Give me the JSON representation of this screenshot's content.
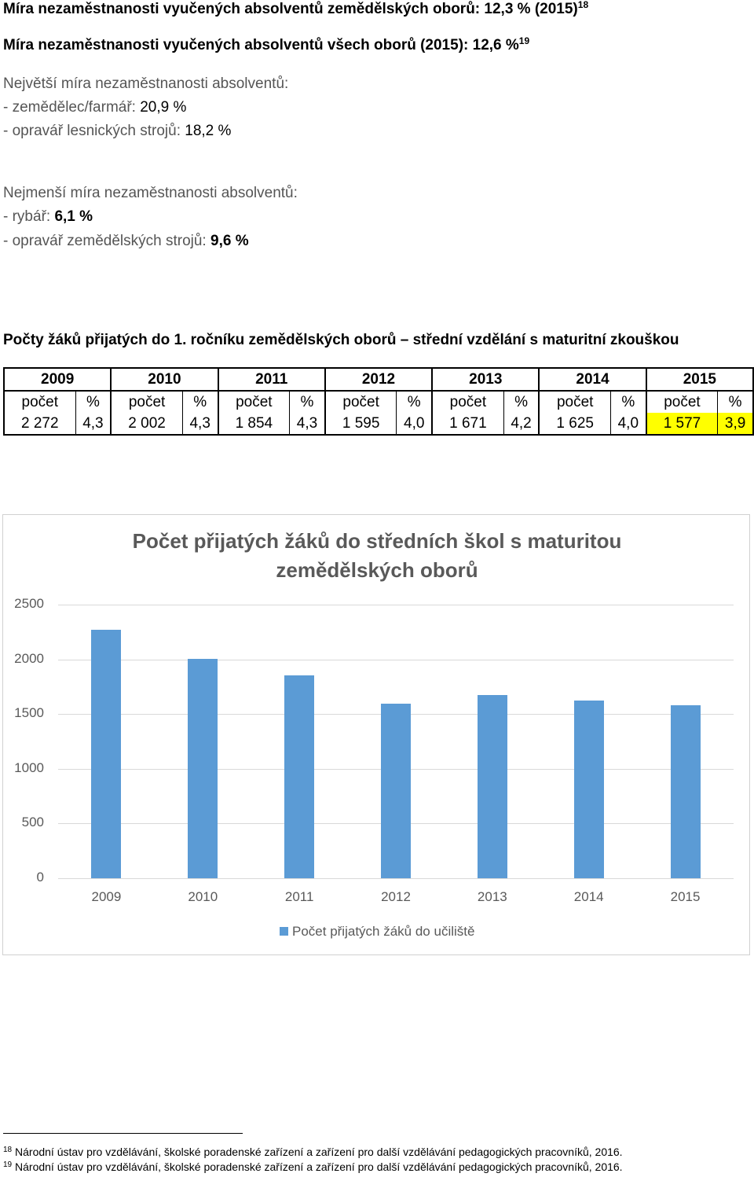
{
  "top": {
    "line1": {
      "text": "Míra nezaměstnanosti vyučených absolventů zemědělských oborů: 12,3 % (2015)",
      "sup": "18"
    },
    "line2": {
      "text": "Míra nezaměstnanosti vyučených absolventů všech oborů (2015): 12,6 %",
      "sup": "19"
    },
    "largest": {
      "heading": "Největší míra nezaměstnanosti absolventů:",
      "items": [
        {
          "label": "- zemědělec/farmář: ",
          "value": "20,9 %"
        },
        {
          "label": "- opravář lesnických strojů: ",
          "value": "18,2 %"
        }
      ]
    },
    "smallest": {
      "heading": "Nejmenší míra nezaměstnanosti absolventů:",
      "items": [
        {
          "label": "- rybář: ",
          "value": "6,1 %"
        },
        {
          "label": "- opravář zemědělských strojů: ",
          "value": "9,6 %"
        }
      ]
    }
  },
  "table_heading": "Počty žáků přijatých do 1. ročníku zemědělských oborů – střední vzdělání s maturitní zkouškou",
  "table": {
    "count_label": "počet",
    "pct_label": "%",
    "rows": [
      {
        "year": "2009",
        "count": "2 272",
        "pct": "4,3"
      },
      {
        "year": "2010",
        "count": "2 002",
        "pct": "4,3"
      },
      {
        "year": "2011",
        "count": "1 854",
        "pct": "4,3"
      },
      {
        "year": "2012",
        "count": "1 595",
        "pct": "4,0"
      },
      {
        "year": "2013",
        "count": "1 671",
        "pct": "4,2"
      },
      {
        "year": "2014",
        "count": "1 625",
        "pct": "4,0"
      },
      {
        "year": "2015",
        "count": "1 577",
        "pct": "3,9",
        "highlight": true
      }
    ]
  },
  "chart_data": {
    "type": "bar",
    "title_line1": "Počet přijatých žáků do středních škol s maturitou",
    "title_line2": "zemědělských oborů",
    "categories": [
      "2009",
      "2010",
      "2011",
      "2012",
      "2013",
      "2014",
      "2015"
    ],
    "series": [
      {
        "name": "Počet přijatých žáků do učiliště",
        "values": [
          2272,
          2002,
          1854,
          1595,
          1671,
          1625,
          1577
        ],
        "color": "#5b9bd5"
      }
    ],
    "yticks": [
      "0",
      "500",
      "1000",
      "1500",
      "2000",
      "2500"
    ],
    "ylim": [
      0,
      2500
    ],
    "grid": true,
    "legend": "bottom"
  },
  "footnotes": [
    {
      "num": "18",
      "text": "Národní ústav pro vzdělávání, školské poradenské zařízení a zařízení pro další vzdělávání pedagogických pracovníků, 2016."
    },
    {
      "num": "19",
      "text": "Národní ústav pro vzdělávání, školské poradenské zařízení a zařízení pro další vzdělávání pedagogických pracovníků, 2016."
    }
  ]
}
